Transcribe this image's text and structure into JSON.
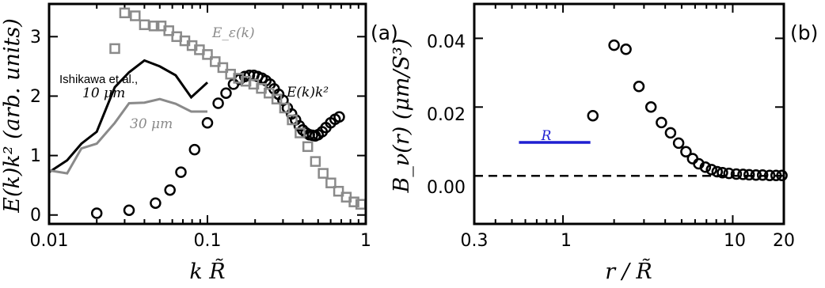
{
  "chart_data": [
    {
      "type": "line",
      "panel_label": "(a)",
      "xlabel": "k R̃",
      "ylabel": "E(k)k² (arb. units)",
      "xscale": "log",
      "xlim": [
        0.01,
        1
      ],
      "ylim": [
        -0.15,
        3.55
      ],
      "x_ticks": [
        0.01,
        0.1,
        1
      ],
      "x_tick_labels": [
        "0.01",
        "0.1",
        "1"
      ],
      "y_ticks": [
        0,
        1,
        2,
        3
      ],
      "y_tick_labels": [
        "0",
        "1",
        "2",
        "3"
      ],
      "colors": {
        "black": "#000000",
        "gray": "#8a8a8a"
      },
      "series": [
        {
          "name": "E(k)k²",
          "kind": "marker-circle",
          "color": "#000000",
          "x": [
            0.02,
            0.032,
            0.047,
            0.058,
            0.068,
            0.083,
            0.1,
            0.117,
            0.131,
            0.146,
            0.16,
            0.172,
            0.184,
            0.196,
            0.208,
            0.221,
            0.234,
            0.249,
            0.264,
            0.282,
            0.3,
            0.32,
            0.34,
            0.36,
            0.38,
            0.4,
            0.42,
            0.44,
            0.46,
            0.48,
            0.5,
            0.53,
            0.56,
            0.6,
            0.64,
            0.68
          ],
          "y": [
            0.03,
            0.08,
            0.2,
            0.42,
            0.72,
            1.1,
            1.55,
            1.88,
            2.05,
            2.2,
            2.28,
            2.33,
            2.35,
            2.35,
            2.33,
            2.3,
            2.26,
            2.2,
            2.12,
            2.03,
            1.93,
            1.8,
            1.7,
            1.6,
            1.5,
            1.43,
            1.38,
            1.35,
            1.34,
            1.33,
            1.35,
            1.4,
            1.47,
            1.55,
            1.61,
            1.65
          ]
        },
        {
          "name": "E_ε(k)",
          "kind": "marker-square",
          "color": "#8a8a8a",
          "x": [
            0.026,
            0.03,
            0.035,
            0.04,
            0.046,
            0.051,
            0.057,
            0.064,
            0.072,
            0.08,
            0.089,
            0.1,
            0.112,
            0.125,
            0.14,
            0.157,
            0.175,
            0.196,
            0.219,
            0.245,
            0.274,
            0.307,
            0.343,
            0.384,
            0.43,
            0.481,
            0.538,
            0.602,
            0.673,
            0.753,
            0.842,
            0.93
          ],
          "y": [
            2.8,
            3.4,
            3.35,
            3.2,
            3.18,
            3.18,
            3.1,
            3.0,
            2.93,
            2.85,
            2.78,
            2.7,
            2.58,
            2.48,
            2.37,
            2.3,
            2.25,
            2.2,
            2.13,
            2.05,
            1.95,
            1.8,
            1.6,
            1.38,
            1.15,
            0.9,
            0.7,
            0.54,
            0.4,
            0.3,
            0.22,
            0.18
          ]
        },
        {
          "name": "Ishikawa et al. 10 μm",
          "kind": "line",
          "color": "#000000",
          "x": [
            0.01,
            0.013,
            0.016,
            0.02,
            0.026,
            0.032,
            0.04,
            0.05,
            0.063,
            0.079,
            0.1
          ],
          "y": [
            0.72,
            0.92,
            1.2,
            1.4,
            2.15,
            2.4,
            2.6,
            2.5,
            2.35,
            1.98,
            2.23
          ]
        },
        {
          "name": "30 μm",
          "kind": "line",
          "color": "#8a8a8a",
          "x": [
            0.01,
            0.013,
            0.016,
            0.02,
            0.026,
            0.032,
            0.04,
            0.05,
            0.063,
            0.079,
            0.1
          ],
          "y": [
            0.75,
            0.7,
            1.12,
            1.2,
            1.55,
            1.88,
            1.89,
            1.95,
            1.87,
            1.74,
            1.74
          ]
        }
      ],
      "annotations": {
        "ishikawa": "Ishikawa et al.,",
        "ten_um": "10 μm",
        "thirty_um": "30 μm",
        "e_eps": "E_ε(k)",
        "e_k2": "E(k)k²"
      }
    },
    {
      "type": "scatter",
      "panel_label": "(b)",
      "xlabel": "r / R̃",
      "ylabel": "B_ν(r) (μm/S³)",
      "xscale": "log",
      "xlim": [
        0.3,
        20
      ],
      "ylim": [
        -0.014,
        0.05
      ],
      "x_ticks": [
        0.3,
        1,
        10,
        20
      ],
      "x_tick_labels": [
        "0.3",
        "1",
        "10",
        "20"
      ],
      "y_ticks": [
        0.0,
        0.02,
        0.04
      ],
      "y_tick_labels": [
        "0.00",
        "0.02",
        "0.04"
      ],
      "series": [
        {
          "name": "B_ν(r)",
          "kind": "marker-circle",
          "color": "#000000",
          "x": [
            1.5,
            2.0,
            2.35,
            2.8,
            3.3,
            3.8,
            4.3,
            4.8,
            5.3,
            5.8,
            6.3,
            6.9,
            7.5,
            8.1,
            8.7,
            9.5,
            10.5,
            11.5,
            12.5,
            13.7,
            15.0,
            16.5,
            18.0,
            19.5
          ],
          "y": [
            0.0175,
            0.038,
            0.0368,
            0.026,
            0.02,
            0.0155,
            0.0125,
            0.0095,
            0.007,
            0.005,
            0.0035,
            0.0025,
            0.0018,
            0.0012,
            0.0009,
            0.0007,
            0.0005,
            0.0004,
            0.0003,
            0.0002,
            0.0002,
            0.0001,
            0.0001,
            0.0001
          ]
        }
      ],
      "reference_line": {
        "y": 0.0,
        "style": "dashed"
      },
      "r_bar": {
        "label": "R",
        "x": [
          0.55,
          1.45
        ],
        "y": 0.0097,
        "color": "#1f1fd1"
      }
    }
  ]
}
